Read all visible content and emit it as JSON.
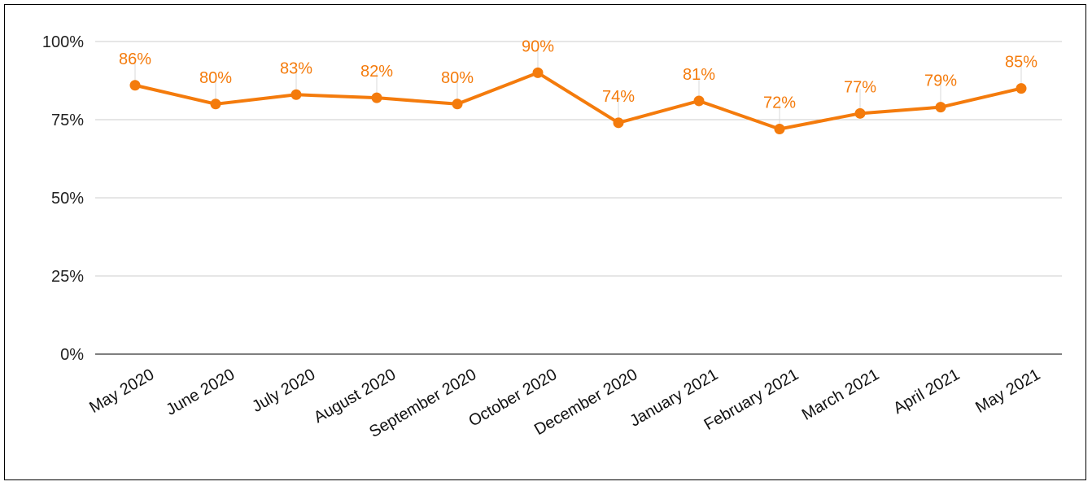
{
  "chart_data": {
    "type": "line",
    "title": "",
    "xlabel": "",
    "ylabel": "",
    "categories": [
      "May 2020",
      "June 2020",
      "July 2020",
      "August 2020",
      "September 2020",
      "October 2020",
      "December 2020",
      "January 2021",
      "February 2021",
      "March 2021",
      "April 2021",
      "May 2021"
    ],
    "series": [
      {
        "values": [
          86,
          80,
          83,
          82,
          80,
          90,
          74,
          81,
          72,
          77,
          79,
          85
        ],
        "labels": [
          "86%",
          "80%",
          "83%",
          "82%",
          "80%",
          "90%",
          "74%",
          "81%",
          "72%",
          "77%",
          "79%",
          "85%"
        ]
      }
    ],
    "ylim": [
      0,
      100
    ],
    "yticks": [
      0,
      25,
      50,
      75,
      100
    ],
    "ytick_labels": [
      "0%",
      "25%",
      "50%",
      "75%",
      "100%"
    ],
    "grid": true,
    "legend": "none",
    "colors": {
      "series": "#f47b0c",
      "grid": "#cccccc",
      "axis": "#333333",
      "text": "#222222"
    }
  }
}
